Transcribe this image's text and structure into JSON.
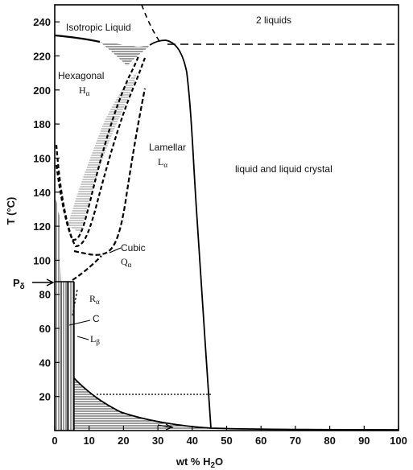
{
  "axes": {
    "xlabel": "wt % H2O",
    "xlabel_main": "wt % H",
    "xlabel_sub": "2",
    "xlabel_tail": "O",
    "ylabel": "T (°C)",
    "xticks": [
      "0",
      "10",
      "20",
      "30",
      "40",
      "50",
      "60",
      "70",
      "80",
      "90",
      "100"
    ],
    "yticks": [
      "20",
      "40",
      "60",
      "80",
      "100",
      "120",
      "140",
      "160",
      "180",
      "200",
      "220",
      "240"
    ],
    "xlim": [
      0,
      100
    ],
    "ylim": [
      0,
      250
    ]
  },
  "regions": {
    "isotropic": "Isotropic Liquid",
    "two_liquids": "2 liquids",
    "hexagonal": "Hexagonal",
    "hexagonal_sym": "H",
    "hexagonal_sub": "α",
    "lamellar": "Lamellar",
    "lamellar_sym": "L",
    "lamellar_sub": "α",
    "liquid_crystal": "liquid and liquid crystal",
    "cubic": "Cubic",
    "cubic_sym": "Q",
    "cubic_sub": "α",
    "r_alpha_sym": "R",
    "r_alpha_sub": "α",
    "c_label": "C",
    "l_beta_sym": "L",
    "l_beta_sub": "β",
    "p_delta_sym": "P",
    "p_delta_sub": "δ"
  }
}
